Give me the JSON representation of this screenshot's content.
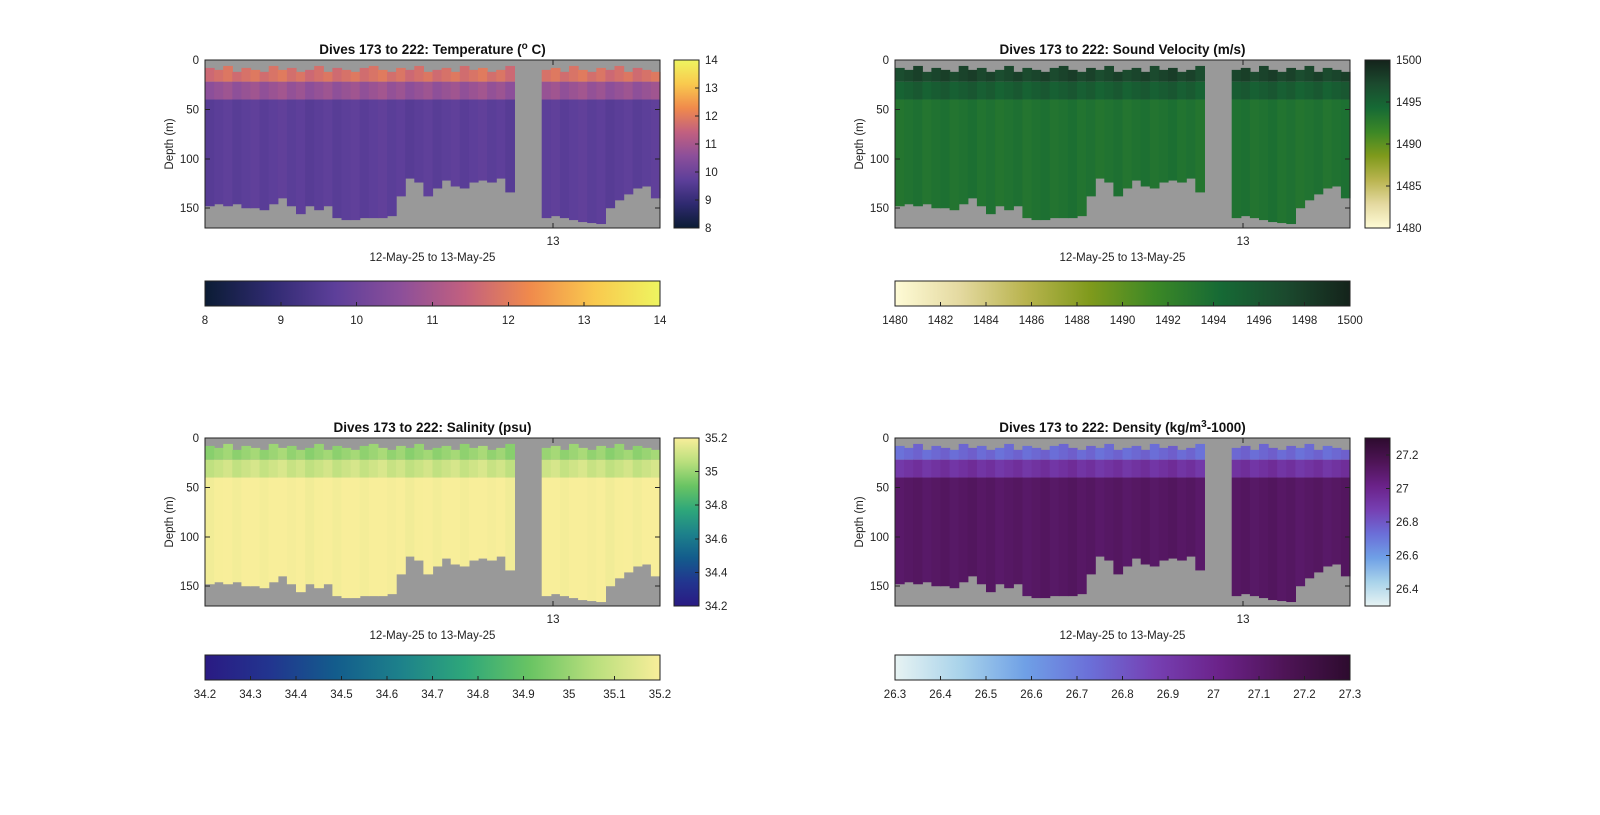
{
  "chart_data": [
    {
      "type": "heatmap",
      "title": "Dives 173 to 222: Temperature (° C)",
      "title_prefix": "Dives 173 to 222: Temperature (",
      "title_sup": "o",
      "title_suffix": " C)",
      "xlabel": "12-May-25 to 13-May-25",
      "ylabel": "Depth (m)",
      "x_ticks": [
        "13"
      ],
      "y_ticks": [
        0,
        50,
        100,
        150
      ],
      "ylim": [
        0,
        170
      ],
      "colorbar_range": [
        8,
        14
      ],
      "colorbar_ticks": [
        "8",
        "9",
        "10",
        "11",
        "12",
        "13",
        "14"
      ],
      "h_colorbar_ticks": [
        "8",
        "9",
        "10",
        "11",
        "12",
        "13",
        "14"
      ],
      "colormap": [
        "#0b1c34",
        "#2f2a70",
        "#5d3f9a",
        "#8c4f9a",
        "#c2607f",
        "#f08a4c",
        "#f9c94e",
        "#eef560"
      ],
      "surface_value": 11.8,
      "deep_value": 9.7,
      "gap_dives": [
        34,
        35,
        36
      ]
    },
    {
      "type": "heatmap",
      "title": "Dives 173 to 222: Sound Velocity (m/s)",
      "title_prefix": "Dives 173 to 222: Sound Velocity (m/s)",
      "title_sup": "",
      "title_suffix": "",
      "xlabel": "12-May-25 to 13-May-25",
      "ylabel": "Depth (m)",
      "x_ticks": [
        "13"
      ],
      "y_ticks": [
        0,
        50,
        100,
        150
      ],
      "ylim": [
        0,
        170
      ],
      "colorbar_range": [
        1480,
        1500
      ],
      "colorbar_ticks": [
        "1480",
        "1485",
        "1490",
        "1495",
        "1500"
      ],
      "h_colorbar_ticks": [
        "1480",
        "1482",
        "1484",
        "1486",
        "1488",
        "1490",
        "1492",
        "1494",
        "1496",
        "1498",
        "1500"
      ],
      "colormap": [
        "#fefbd6",
        "#e4d9a0",
        "#b9b44f",
        "#7f9a1c",
        "#3c8826",
        "#166a35",
        "#1b4a2e",
        "#14231b"
      ],
      "surface_value": 1497.5,
      "deep_value": 1493.5,
      "gap_dives": [
        34,
        35,
        36
      ]
    },
    {
      "type": "heatmap",
      "title": "Dives 173 to 222: Salinity (psu)",
      "title_prefix": "Dives 173 to 222: Salinity (psu)",
      "title_sup": "",
      "title_suffix": "",
      "xlabel": "12-May-25 to 13-May-25",
      "ylabel": "Depth (m)",
      "x_ticks": [
        "13"
      ],
      "y_ticks": [
        0,
        50,
        100,
        150
      ],
      "ylim": [
        0,
        170
      ],
      "colorbar_range": [
        34.2,
        35.2
      ],
      "colorbar_ticks": [
        "34.2",
        "34.4",
        "34.6",
        "34.8",
        "35",
        "35.2"
      ],
      "h_colorbar_ticks": [
        "34.2",
        "34.3",
        "34.4",
        "34.5",
        "34.6",
        "34.7",
        "34.8",
        "34.9",
        "35",
        "35.1",
        "35.2"
      ],
      "colormap": [
        "#2a1a83",
        "#22358f",
        "#135c8c",
        "#1d818b",
        "#2ea77a",
        "#69c463",
        "#b9df7d",
        "#f8ee9a"
      ],
      "surface_value": 35.0,
      "deep_value": 35.2,
      "gap_dives": [
        34,
        35,
        36
      ]
    },
    {
      "type": "heatmap",
      "title": "Dives 173 to 222: Density (kg/m³-1000)",
      "title_prefix": "Dives 173 to 222: Density (kg/m",
      "title_sup": "3",
      "title_suffix": "-1000)",
      "xlabel": "12-May-25 to 13-May-25",
      "ylabel": "Depth (m)",
      "x_ticks": [
        "13"
      ],
      "y_ticks": [
        0,
        50,
        100,
        150
      ],
      "ylim": [
        0,
        170
      ],
      "colorbar_range": [
        26.3,
        27.3
      ],
      "colorbar_ticks": [
        "26.4",
        "26.6",
        "26.8",
        "27",
        "27.2"
      ],
      "h_colorbar_ticks": [
        "26.3",
        "26.4",
        "26.5",
        "26.6",
        "26.7",
        "26.8",
        "26.9",
        "27",
        "27.1",
        "27.2",
        "27.3"
      ],
      "colormap": [
        "#e7f3f3",
        "#a9d3ea",
        "#6fa0e6",
        "#6b6fd8",
        "#7640b3",
        "#6b2289",
        "#4e1456",
        "#2d0b2e"
      ],
      "surface_value": 26.75,
      "deep_value": 27.12,
      "gap_dives": [
        34,
        35,
        36
      ]
    }
  ],
  "dive_count": 50,
  "bottom_depths_m": [
    148,
    146,
    148,
    146,
    150,
    150,
    152,
    146,
    140,
    148,
    156,
    148,
    152,
    148,
    160,
    162,
    162,
    160,
    160,
    160,
    158,
    138,
    120,
    124,
    138,
    130,
    122,
    128,
    130,
    124,
    122,
    124,
    120,
    134,
    0,
    0,
    0,
    160,
    158,
    160,
    162,
    164,
    165,
    166,
    150,
    142,
    136,
    130,
    128,
    140
  ],
  "first_sample_depths_m": [
    8,
    10,
    6,
    12,
    8,
    10,
    12,
    6,
    10,
    8,
    12,
    10,
    6,
    12,
    8,
    10,
    12,
    8,
    6,
    10,
    12,
    8,
    10,
    6,
    12,
    10,
    8,
    12,
    6,
    10,
    8,
    12,
    10,
    6,
    0,
    0,
    0,
    10,
    8,
    12,
    6,
    10,
    12,
    8,
    10,
    6,
    12,
    8,
    10,
    12
  ],
  "no_data_color": "#999999"
}
